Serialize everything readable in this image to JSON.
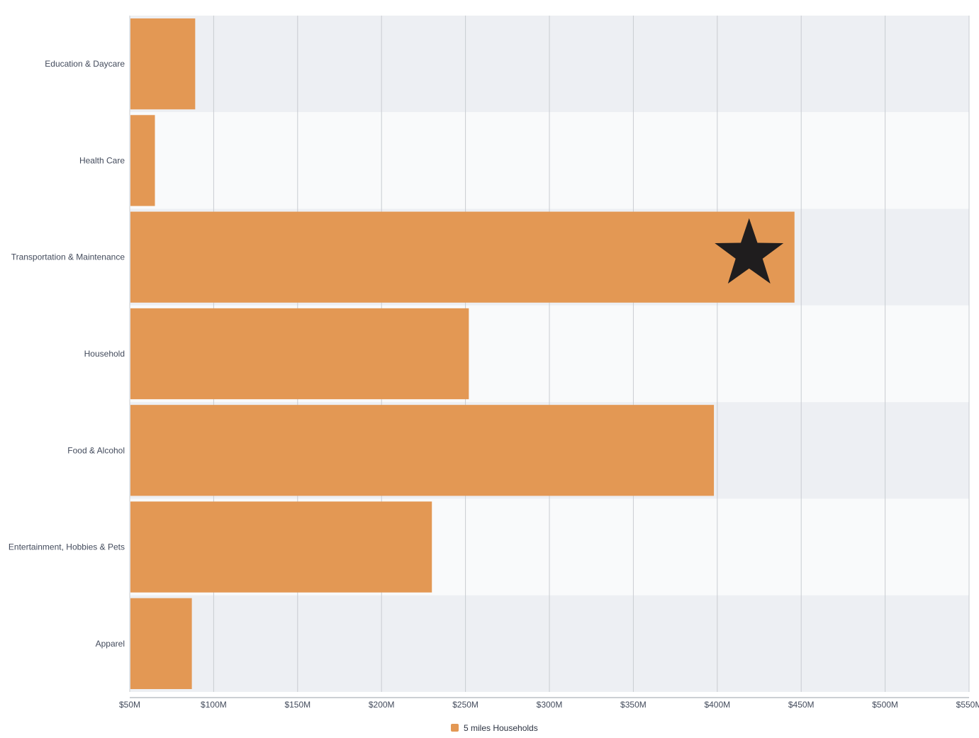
{
  "chart_data": {
    "type": "bar",
    "orientation": "horizontal",
    "title": "",
    "xlabel": "",
    "ylabel": "",
    "xlim": [
      50,
      550
    ],
    "x_unit_prefix": "$",
    "x_unit_suffix": "M",
    "x_ticks": [
      50,
      100,
      150,
      200,
      250,
      300,
      350,
      400,
      450,
      500,
      550
    ],
    "x_tick_labels": [
      "$50M",
      "$100M",
      "$150M",
      "$200M",
      "$250M",
      "$300M",
      "$350M",
      "$400M",
      "$450M",
      "$500M",
      "$550M"
    ],
    "categories": [
      "Education & Daycare",
      "Health Care",
      "Transportation & Maintenance",
      "Household",
      "Food & Alcohol",
      "Entertainment, Hobbies & Pets",
      "Apparel"
    ],
    "series": [
      {
        "name": "5 miles Households",
        "color": "#e39854",
        "values": [
          89,
          65,
          446,
          252,
          398,
          230,
          87
        ]
      }
    ],
    "highlight": {
      "category": "Transportation & Maintenance",
      "marker": "star-icon",
      "color": "#1f1d1e"
    },
    "grid": true,
    "band_colors": [
      "#edeff3",
      "#f9fafb"
    ],
    "grid_color": "#c9ccd1",
    "label_color": "#434b5c",
    "legend_position": "bottom-center"
  }
}
